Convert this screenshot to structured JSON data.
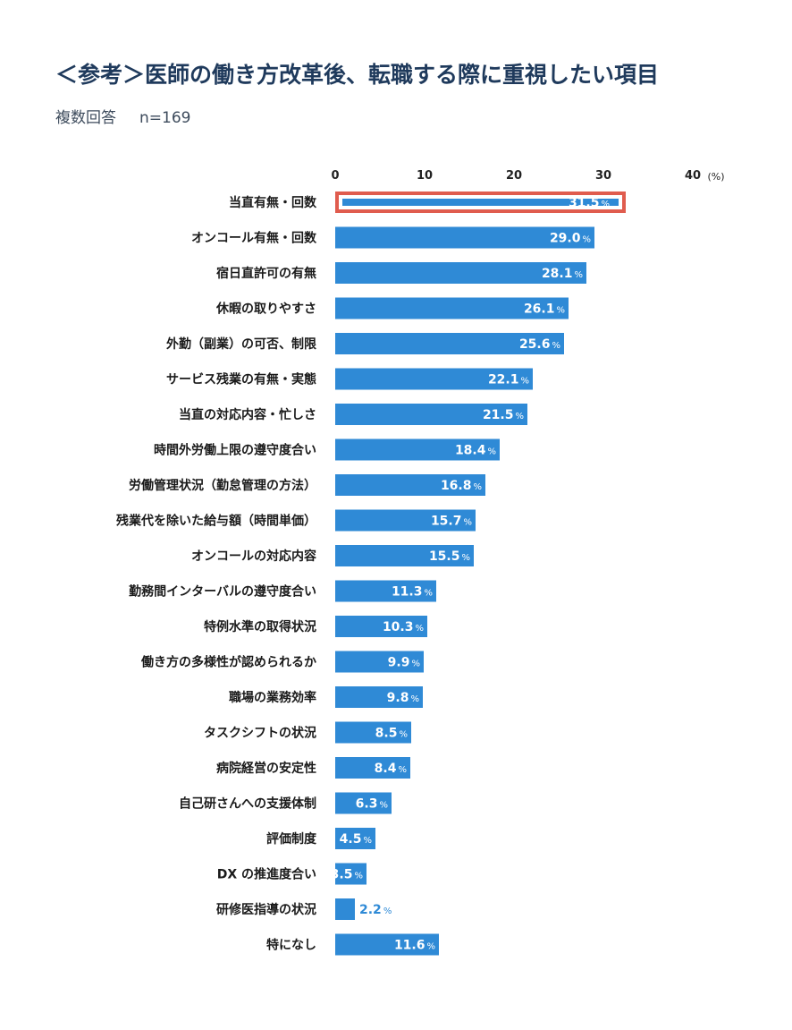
{
  "header": {
    "title": "＜参考＞医師の働き方改革後、転職する際に重視したい項目",
    "subtitle_left": "複数回答",
    "subtitle_n": "n=169"
  },
  "chart_data": {
    "type": "bar",
    "orientation": "horizontal",
    "xlim": [
      0,
      40
    ],
    "ticks": [
      0,
      10,
      20,
      30,
      40
    ],
    "unit_label": "(%)",
    "value_suffix": "%",
    "highlight_index": 0,
    "colors": {
      "bar": "#2f8ad6",
      "highlight_border": "#e05c4e",
      "label_in": "#ffffff",
      "label_out": "#2f8ad6"
    },
    "categories": [
      "当直有無・回数",
      "オンコール有無・回数",
      "宿日直許可の有無",
      "休暇の取りやすさ",
      "外勤（副業）の可否、制限",
      "サービス残業の有無・実態",
      "当直の対応内容・忙しさ",
      "時間外労働上限の遵守度合い",
      "労働管理状況（勤怠管理の方法）",
      "残業代を除いた給与額（時間単価）",
      "オンコールの対応内容",
      "勤務間インターバルの遵守度合い",
      "特例水準の取得状況",
      "働き方の多様性が認められるか",
      "職場の業務効率",
      "タスクシフトの状況",
      "病院経営の安定性",
      "自己研さんへの支援体制",
      "評価制度",
      "DX の推進度合い",
      "研修医指導の状況",
      "特になし"
    ],
    "values": [
      31.5,
      29.0,
      28.1,
      26.1,
      25.6,
      22.1,
      21.5,
      18.4,
      16.8,
      15.7,
      15.5,
      11.3,
      10.3,
      9.9,
      9.8,
      8.5,
      8.4,
      6.3,
      4.5,
      3.5,
      2.2,
      11.6
    ],
    "labels": [
      "31.5",
      "29.0",
      "28.1",
      "26.1",
      "25.6",
      "22.1",
      "21.5",
      "18.4",
      "16.8",
      "15.7",
      "15.5",
      "11.3",
      "10.3",
      "9.9",
      "9.8",
      "8.5",
      "8.4",
      "6.3",
      "4.5",
      "3.5",
      "2.2",
      "11.6"
    ]
  }
}
